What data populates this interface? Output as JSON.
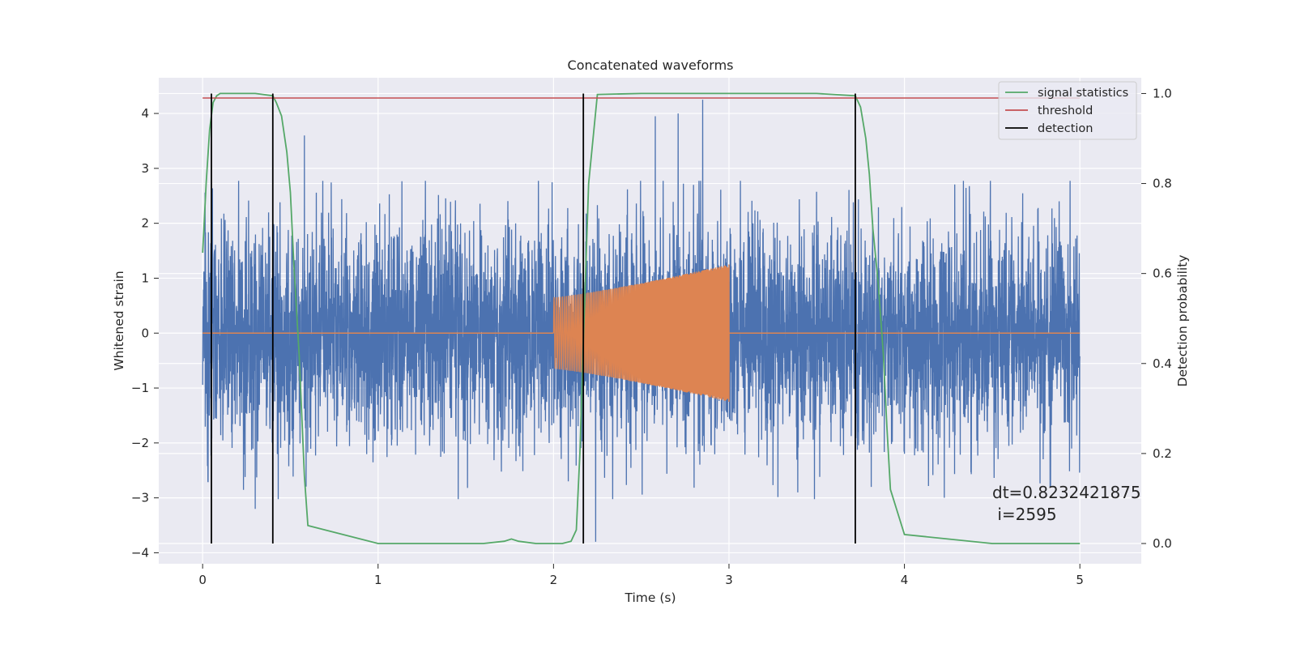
{
  "chart_data": {
    "type": "line",
    "title": "Concatenated waveforms",
    "xlabel": "Time (s)",
    "ylabel": "Whitened strain",
    "y2label": "Detection probability",
    "xlim": [
      -0.25,
      5.35
    ],
    "ylim": [
      -4.2,
      4.65
    ],
    "y2lim": [
      -0.045,
      1.035
    ],
    "x_ticks": [
      0,
      1,
      2,
      3,
      4,
      5
    ],
    "y_ticks": [
      -4,
      -3,
      -2,
      -1,
      0,
      1,
      2,
      3,
      4
    ],
    "y2_ticks": [
      0.0,
      0.2,
      0.4,
      0.6,
      0.8,
      1.0
    ],
    "x_tick_labels": [
      "0",
      "1",
      "2",
      "3",
      "4",
      "5"
    ],
    "y_tick_labels": [
      "−4",
      "−3",
      "−2",
      "−1",
      "0",
      "1",
      "2",
      "3",
      "4"
    ],
    "y2_tick_labels": [
      "0.0",
      "0.2",
      "0.4",
      "0.6",
      "0.8",
      "1.0"
    ],
    "grid": true,
    "legend_position": "top-right",
    "colors": {
      "axes_bg": "#eaeaf2",
      "grid": "#ffffff",
      "strain": "#4c72b0",
      "template": "#dd8452",
      "signal_statistics": "#55a868",
      "threshold": "#c44e52",
      "detection": "#000000"
    },
    "series": [
      {
        "name": "",
        "axis": "left",
        "kind": "noise",
        "x_range": [
          0,
          5
        ],
        "amplitude_typical": 1.6,
        "amplitude_peak": 4.2,
        "peaks": [
          {
            "x": 0.58,
            "y": 3.6
          },
          {
            "x": 2.58,
            "y": 3.95
          },
          {
            "x": 2.71,
            "y": 4.0
          },
          {
            "x": 2.85,
            "y": 4.25
          },
          {
            "x": 2.24,
            "y": -3.8
          },
          {
            "x": 4.83,
            "y": -2.8
          },
          {
            "x": 0.03,
            "y": -2.7
          },
          {
            "x": 0.3,
            "y": -3.2
          }
        ]
      },
      {
        "name": "",
        "axis": "left",
        "kind": "chirp",
        "x_range": [
          2.0,
          3.0
        ],
        "envelope_start": 0.65,
        "envelope_end": 1.25,
        "baseline": 0
      },
      {
        "name": "signal statistics",
        "axis": "right",
        "x": [
          0.0,
          0.02,
          0.04,
          0.06,
          0.08,
          0.1,
          0.15,
          0.3,
          0.4,
          0.42,
          0.45,
          0.48,
          0.5,
          0.52,
          0.55,
          0.58,
          0.6,
          1.0,
          1.6,
          1.72,
          1.76,
          1.8,
          1.9,
          2.05,
          2.1,
          2.13,
          2.15,
          2.17,
          2.2,
          2.25,
          2.5,
          3.0,
          3.5,
          3.72,
          3.75,
          3.78,
          3.8,
          3.82,
          3.85,
          3.88,
          3.9,
          3.92,
          4.0,
          4.5,
          5.0
        ],
        "y": [
          0.646,
          0.8,
          0.92,
          0.98,
          0.995,
          1.0,
          1.0,
          1.0,
          0.995,
          0.98,
          0.95,
          0.87,
          0.78,
          0.62,
          0.42,
          0.15,
          0.04,
          0.0,
          0.0,
          0.005,
          0.01,
          0.005,
          0.0,
          0.0,
          0.005,
          0.03,
          0.2,
          0.45,
          0.8,
          0.998,
          1.0,
          1.0,
          1.0,
          0.995,
          0.97,
          0.9,
          0.82,
          0.7,
          0.58,
          0.42,
          0.26,
          0.12,
          0.02,
          0.0,
          0.0
        ]
      },
      {
        "name": "threshold",
        "axis": "right",
        "x": [
          0,
          5
        ],
        "y": [
          0.99,
          0.99
        ]
      },
      {
        "name": "detection",
        "axis": "right",
        "kind": "vlines",
        "x": [
          0.05,
          0.4,
          2.17,
          3.72
        ],
        "y_range": [
          0.0,
          1.0
        ]
      }
    ],
    "annotation": {
      "line1": "dt=0.8232421875",
      "line2": " i=2595",
      "x": 4.5,
      "y": 0.11
    }
  }
}
